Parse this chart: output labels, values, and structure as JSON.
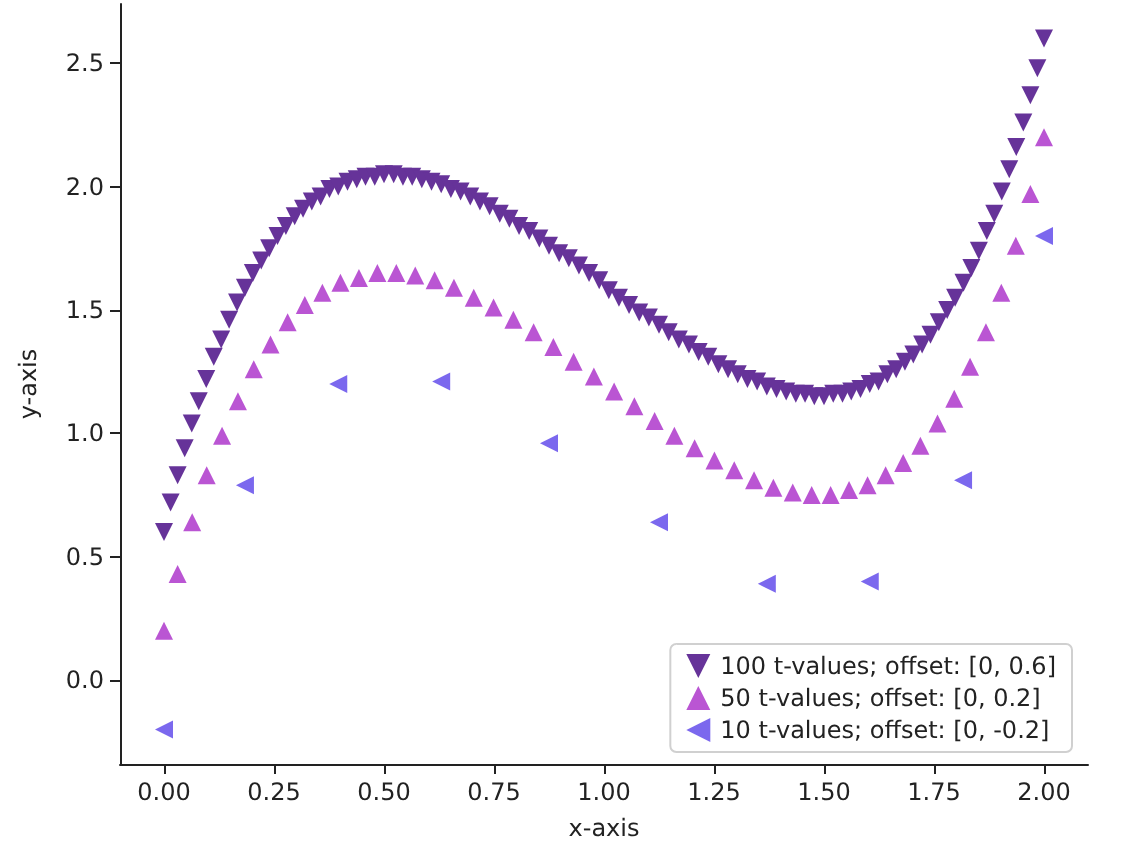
{
  "chart_data": {
    "type": "scatter",
    "xlabel": "x-axis",
    "ylabel": "y-axis",
    "xlim": [
      -0.1,
      2.1
    ],
    "xticks": [
      {
        "value": 0,
        "label": "0.00"
      },
      {
        "value": 0.25,
        "label": "0.25"
      },
      {
        "value": 0.5,
        "label": "0.50"
      },
      {
        "value": 0.75,
        "label": "0.75"
      },
      {
        "value": 1,
        "label": "1.00"
      },
      {
        "value": 1.25,
        "label": "1.25"
      },
      {
        "value": 1.5,
        "label": "1.50"
      },
      {
        "value": 1.75,
        "label": "1.75"
      },
      {
        "value": 2,
        "label": "2.00"
      }
    ],
    "ylim": [
      -0.34,
      2.74
    ],
    "yticks": [
      {
        "value": 0,
        "label": "0.0"
      },
      {
        "value": 0.5,
        "label": "0.5"
      },
      {
        "value": 1,
        "label": "1.0"
      },
      {
        "value": 1.5,
        "label": "1.5"
      },
      {
        "value": 2,
        "label": "2.0"
      },
      {
        "value": 2.5,
        "label": "2.5"
      }
    ],
    "grid": false,
    "legend": "bottom right",
    "series": [
      {
        "name": "100 t-values; offset: [0, 0.6]",
        "color": "#663399",
        "marker": "triangle-down",
        "x": [
          0,
          0.015,
          0.031,
          0.047,
          0.063,
          0.079,
          0.096,
          0.113,
          0.13,
          0.148,
          0.166,
          0.184,
          0.202,
          0.221,
          0.239,
          0.258,
          0.277,
          0.297,
          0.316,
          0.336,
          0.356,
          0.376,
          0.396,
          0.417,
          0.438,
          0.458,
          0.479,
          0.5,
          0.522,
          0.543,
          0.564,
          0.586,
          0.608,
          0.63,
          0.652,
          0.674,
          0.696,
          0.718,
          0.74,
          0.763,
          0.785,
          0.807,
          0.83,
          0.853,
          0.875,
          0.898,
          0.92,
          0.943,
          0.966,
          0.989,
          1.011,
          1.034,
          1.057,
          1.08,
          1.102,
          1.125,
          1.147,
          1.17,
          1.193,
          1.215,
          1.237,
          1.26,
          1.282,
          1.304,
          1.326,
          1.348,
          1.37,
          1.392,
          1.414,
          1.436,
          1.457,
          1.478,
          1.5,
          1.521,
          1.542,
          1.562,
          1.583,
          1.604,
          1.624,
          1.644,
          1.664,
          1.684,
          1.703,
          1.723,
          1.742,
          1.761,
          1.78,
          1.798,
          1.817,
          1.835,
          1.852,
          1.87,
          1.887,
          1.904,
          1.921,
          1.937,
          1.953,
          1.969,
          1.985,
          2
        ],
        "values": [
          0.6,
          0.72,
          0.83,
          0.94,
          1.04,
          1.13,
          1.22,
          1.31,
          1.38,
          1.46,
          1.53,
          1.59,
          1.65,
          1.7,
          1.75,
          1.8,
          1.84,
          1.88,
          1.91,
          1.94,
          1.96,
          1.99,
          2.0,
          2.02,
          2.03,
          2.04,
          2.04,
          2.05,
          2.05,
          2.04,
          2.04,
          2.03,
          2.02,
          2.01,
          1.99,
          1.98,
          1.96,
          1.94,
          1.92,
          1.89,
          1.87,
          1.84,
          1.82,
          1.79,
          1.76,
          1.73,
          1.71,
          1.68,
          1.65,
          1.62,
          1.58,
          1.55,
          1.52,
          1.49,
          1.47,
          1.44,
          1.41,
          1.38,
          1.36,
          1.33,
          1.31,
          1.28,
          1.26,
          1.24,
          1.22,
          1.21,
          1.19,
          1.18,
          1.17,
          1.16,
          1.16,
          1.15,
          1.15,
          1.16,
          1.16,
          1.17,
          1.18,
          1.2,
          1.21,
          1.24,
          1.26,
          1.29,
          1.32,
          1.36,
          1.4,
          1.45,
          1.5,
          1.55,
          1.61,
          1.67,
          1.74,
          1.82,
          1.89,
          1.98,
          2.07,
          2.16,
          2.26,
          2.37,
          2.48,
          2.6
        ]
      },
      {
        "name": "50 t-values; offset: [0, 0.2]",
        "color": "#ba55d3",
        "marker": "triangle",
        "x": [
          0,
          0.031,
          0.064,
          0.097,
          0.132,
          0.168,
          0.204,
          0.242,
          0.281,
          0.32,
          0.36,
          0.401,
          0.443,
          0.485,
          0.528,
          0.571,
          0.615,
          0.659,
          0.704,
          0.749,
          0.794,
          0.84,
          0.885,
          0.931,
          0.977,
          1.023,
          1.069,
          1.115,
          1.16,
          1.206,
          1.251,
          1.296,
          1.341,
          1.385,
          1.429,
          1.472,
          1.515,
          1.557,
          1.599,
          1.64,
          1.68,
          1.719,
          1.758,
          1.796,
          1.832,
          1.868,
          1.903,
          1.936,
          1.969,
          2
        ],
        "values": [
          0.2,
          0.43,
          0.64,
          0.83,
          0.99,
          1.13,
          1.26,
          1.36,
          1.45,
          1.52,
          1.57,
          1.61,
          1.63,
          1.65,
          1.65,
          1.64,
          1.62,
          1.59,
          1.55,
          1.51,
          1.46,
          1.41,
          1.35,
          1.29,
          1.23,
          1.17,
          1.11,
          1.05,
          0.99,
          0.94,
          0.89,
          0.85,
          0.81,
          0.78,
          0.76,
          0.75,
          0.75,
          0.77,
          0.79,
          0.83,
          0.88,
          0.95,
          1.04,
          1.14,
          1.27,
          1.41,
          1.57,
          1.76,
          1.97,
          2.2
        ]
      },
      {
        "name": "10 t-values; offset: [0, -0.2]",
        "color": "#7b68ee",
        "marker": "triangle-left",
        "x": [
          0,
          0.184,
          0.396,
          0.63,
          0.875,
          1.125,
          1.37,
          1.604,
          1.816,
          2
        ],
        "values": [
          -0.2,
          0.79,
          1.2,
          1.21,
          0.96,
          0.64,
          0.39,
          0.4,
          0.81,
          1.8
        ]
      }
    ]
  }
}
